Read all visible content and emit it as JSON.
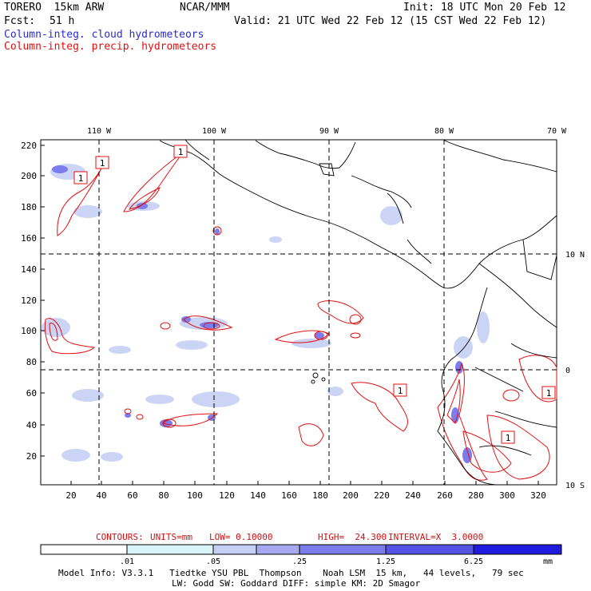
{
  "header": {
    "model": "TORERO  15km ARW",
    "center": "NCAR/MMM",
    "init": "Init: 18 UTC Mon 20 Feb 12",
    "fcst_label": "Fcst:",
    "fcst_value": "51 h",
    "valid": "Valid: 21 UTC Wed 22 Feb 12 (15 CST Wed 22 Feb 12)",
    "legend_cloud": "Column-integ. cloud hydrometeors",
    "legend_precip": "Column-integ. precip. hydrometeors"
  },
  "map": {
    "top_lon_labels": [
      "110 W",
      "100 W",
      "90 W",
      "80 W",
      "70 W"
    ],
    "right_lat_labels": [
      "10 N",
      "0",
      "10 S"
    ],
    "left_ticks": [
      "220",
      "200",
      "180",
      "160",
      "140",
      "120",
      "100",
      "80",
      "60",
      "40",
      "20"
    ],
    "bottom_ticks": [
      "20",
      "40",
      "60",
      "80",
      "100",
      "120",
      "140",
      "160",
      "180",
      "200",
      "220",
      "240",
      "260",
      "280",
      "300",
      "320"
    ],
    "contour_labels": [
      "1",
      "1",
      "1",
      "1",
      "1",
      "1"
    ]
  },
  "contours": {
    "label": "CONTOURS:",
    "units": "UNITS=mm",
    "low": "LOW= 0.10000",
    "high": "HIGH=  24.300",
    "interval": "INTERVAL=X  3.0000"
  },
  "colorbar": {
    "labels": [
      ".01",
      ".05",
      ".25",
      "1.25",
      "6.25"
    ],
    "unit": "mm",
    "colors": [
      "#ffffff",
      "#d8f4fa",
      "#c6d0f4",
      "#a7a8f0",
      "#7d7cec",
      "#5552e6",
      "#1e1ae0"
    ]
  },
  "model_info": {
    "line1": "Model Info: V3.3.1   Tiedtke YSU PBL  Thompson    Noah LSM  15 km,   44 levels,   79 sec",
    "line2": "LW: Godd SW: Goddard DIFF: simple KM: 2D Smagor"
  }
}
